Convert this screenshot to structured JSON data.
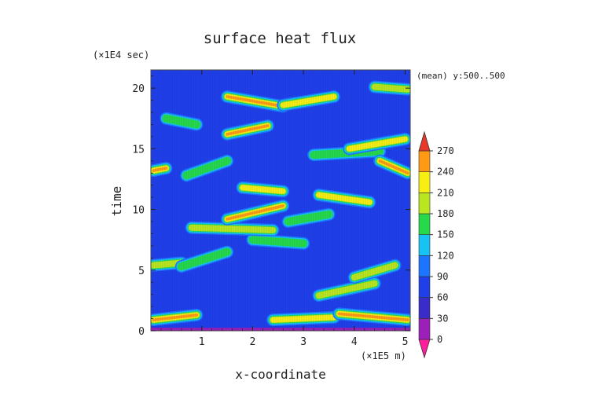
{
  "chart_data": {
    "type": "heatmap",
    "title": "surface heat flux",
    "xlabel": "x-coordinate",
    "ylabel": "time",
    "x_unit": "(×1E5 m)",
    "y_unit": "(×1E4 sec)",
    "annotation": "(mean) y:500..500",
    "xlim": [
      0,
      5.1
    ],
    "ylim": [
      0,
      21.5
    ],
    "x_ticks": [
      1,
      2,
      3,
      4,
      5
    ],
    "y_ticks": [
      0,
      5,
      10,
      15,
      20
    ],
    "grid": false,
    "colorbar": {
      "levels": [
        0,
        30,
        60,
        90,
        120,
        150,
        180,
        210,
        240,
        270
      ],
      "labels": [
        "0",
        "30",
        "60",
        "90",
        "120",
        "150",
        "180",
        "210",
        "240",
        "270"
      ],
      "colors": [
        "#ff1e9b",
        "#9b1fb8",
        "#3a2cc8",
        "#1f3fe8",
        "#1c74ff",
        "#16c3f2",
        "#26d94a",
        "#b9e61e",
        "#f7ee12",
        "#ff9a14",
        "#e8382a"
      ]
    },
    "background_level": 75,
    "baseline_band": {
      "y": [
        0,
        0.25
      ],
      "value": 20
    },
    "features": [
      {
        "x0": 0.05,
        "y0": 0.9,
        "x1": 0.9,
        "y1": 1.3,
        "peak": 260
      },
      {
        "x0": 2.4,
        "y0": 0.9,
        "x1": 3.6,
        "y1": 1.1,
        "peak": 230
      },
      {
        "x0": 3.7,
        "y0": 1.4,
        "x1": 5.05,
        "y1": 0.9,
        "peak": 260
      },
      {
        "x0": 3.3,
        "y0": 2.9,
        "x1": 4.4,
        "y1": 3.9,
        "peak": 200
      },
      {
        "x0": 4.0,
        "y0": 4.4,
        "x1": 4.8,
        "y1": 5.4,
        "peak": 180
      },
      {
        "x0": 0.05,
        "y0": 5.4,
        "x1": 0.6,
        "y1": 5.6,
        "peak": 200
      },
      {
        "x0": 0.6,
        "y0": 5.3,
        "x1": 1.5,
        "y1": 6.5,
        "peak": 170
      },
      {
        "x0": 2.0,
        "y0": 7.5,
        "x1": 3.0,
        "y1": 7.2,
        "peak": 160
      },
      {
        "x0": 0.8,
        "y0": 8.5,
        "x1": 2.4,
        "y1": 8.3,
        "peak": 190
      },
      {
        "x0": 1.5,
        "y0": 9.2,
        "x1": 2.6,
        "y1": 10.3,
        "peak": 250
      },
      {
        "x0": 2.7,
        "y0": 9.0,
        "x1": 3.5,
        "y1": 9.6,
        "peak": 170
      },
      {
        "x0": 1.8,
        "y0": 11.8,
        "x1": 2.6,
        "y1": 11.5,
        "peak": 230
      },
      {
        "x0": 3.3,
        "y0": 11.2,
        "x1": 4.3,
        "y1": 10.6,
        "peak": 210
      },
      {
        "x0": 0.05,
        "y0": 13.2,
        "x1": 0.3,
        "y1": 13.4,
        "peak": 260
      },
      {
        "x0": 0.7,
        "y0": 12.8,
        "x1": 1.5,
        "y1": 14.0,
        "peak": 170
      },
      {
        "x0": 3.2,
        "y0": 14.5,
        "x1": 4.5,
        "y1": 14.8,
        "peak": 170
      },
      {
        "x0": 4.5,
        "y0": 14.0,
        "x1": 5.05,
        "y1": 13.0,
        "peak": 250
      },
      {
        "x0": 3.9,
        "y0": 15.0,
        "x1": 5.0,
        "y1": 15.8,
        "peak": 220
      },
      {
        "x0": 1.5,
        "y0": 16.2,
        "x1": 2.3,
        "y1": 16.9,
        "peak": 240
      },
      {
        "x0": 0.3,
        "y0": 17.5,
        "x1": 0.9,
        "y1": 17.0,
        "peak": 160
      },
      {
        "x0": 1.5,
        "y0": 19.3,
        "x1": 2.6,
        "y1": 18.5,
        "peak": 250
      },
      {
        "x0": 2.6,
        "y0": 18.6,
        "x1": 3.6,
        "y1": 19.3,
        "peak": 230
      },
      {
        "x0": 4.4,
        "y0": 20.1,
        "x1": 5.05,
        "y1": 19.9,
        "peak": 180
      }
    ]
  }
}
